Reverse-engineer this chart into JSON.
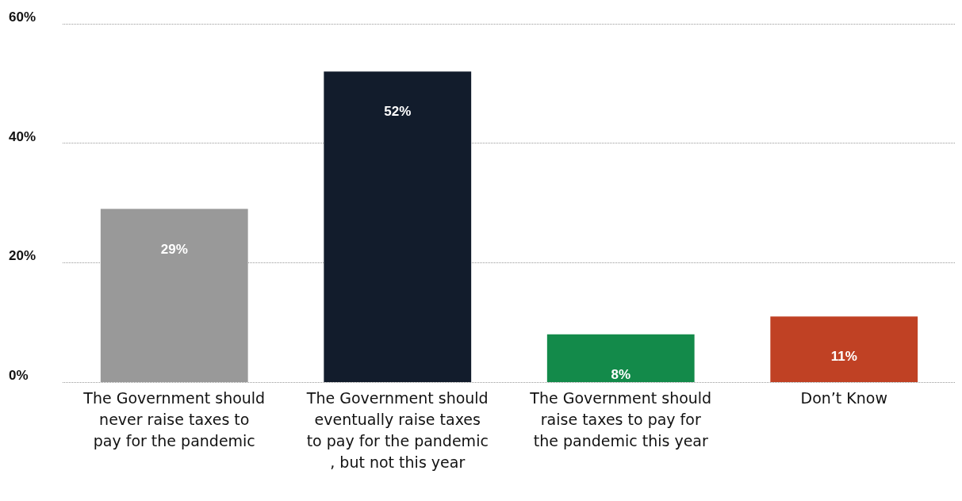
{
  "chart_data": {
    "type": "bar",
    "categories": [
      "The Government should never raise taxes to pay for the pandemic",
      "The Government should eventually raise taxes to pay for the pandemic, but not this year",
      "The Government should raise taxes to pay for the pandemic this year",
      "Don’t Know"
    ],
    "values": [
      29,
      52,
      8,
      11
    ],
    "colors": [
      "#999999",
      "#121c2c",
      "#138a4a",
      "#c04124"
    ],
    "value_labels": [
      "29%",
      "52%",
      "8%",
      "11%"
    ],
    "ylim": [
      0,
      60
    ],
    "yticks": [
      {
        "value": 0,
        "label": "0%"
      },
      {
        "value": 20,
        "label": "20%"
      },
      {
        "value": 40,
        "label": "40%"
      },
      {
        "value": 60,
        "label": "60%"
      }
    ],
    "grid": "y"
  }
}
